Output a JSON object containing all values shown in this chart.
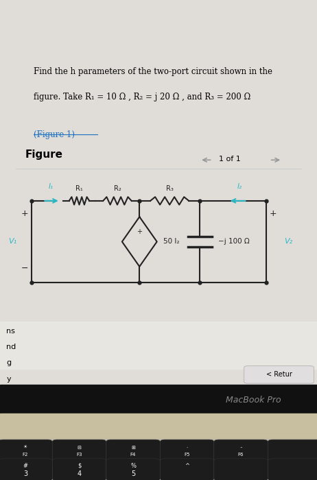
{
  "bg_top_color": "#c8ddd8",
  "bg_page_color": "#e0ddd8",
  "bg_white": "#f0f0f0",
  "title_text": "Find the h parameters of the two-port circuit shown in the",
  "title_text2": "figure. Take R₁ = 10 Ω , R₂ = j 20 Ω , and R₃ = 200 Ω",
  "figure_link": "(Figure 1)",
  "figure_label": "Figure",
  "nav_text": "1 of 1",
  "circuit_color": "#222222",
  "label_color": "#2ab8c4",
  "dep_source_label": "50 I₂",
  "cap_label": "−j 100 Ω",
  "v1_label": "V₁",
  "v2_label": "V₂",
  "i1_label": "I₁",
  "i2_label": "I₂",
  "r1_label": "R₁",
  "r2_label": "R₂",
  "r3_label": "R₃",
  "keyboard_bg": "#b0a898",
  "keyboard_dark": "#1a1a1a",
  "return_btn": "< Retur",
  "macbook_text": "MacBook Pro",
  "sidebar_labels": [
    "ns",
    "nd",
    "g",
    "y"
  ],
  "fn_key_labels": [
    "F2",
    "F3",
    "F4",
    "F5",
    "F6"
  ],
  "num_key_labels": [
    "#\n3",
    "$\n4",
    "%\n5",
    "^\n ",
    "&\n "
  ]
}
